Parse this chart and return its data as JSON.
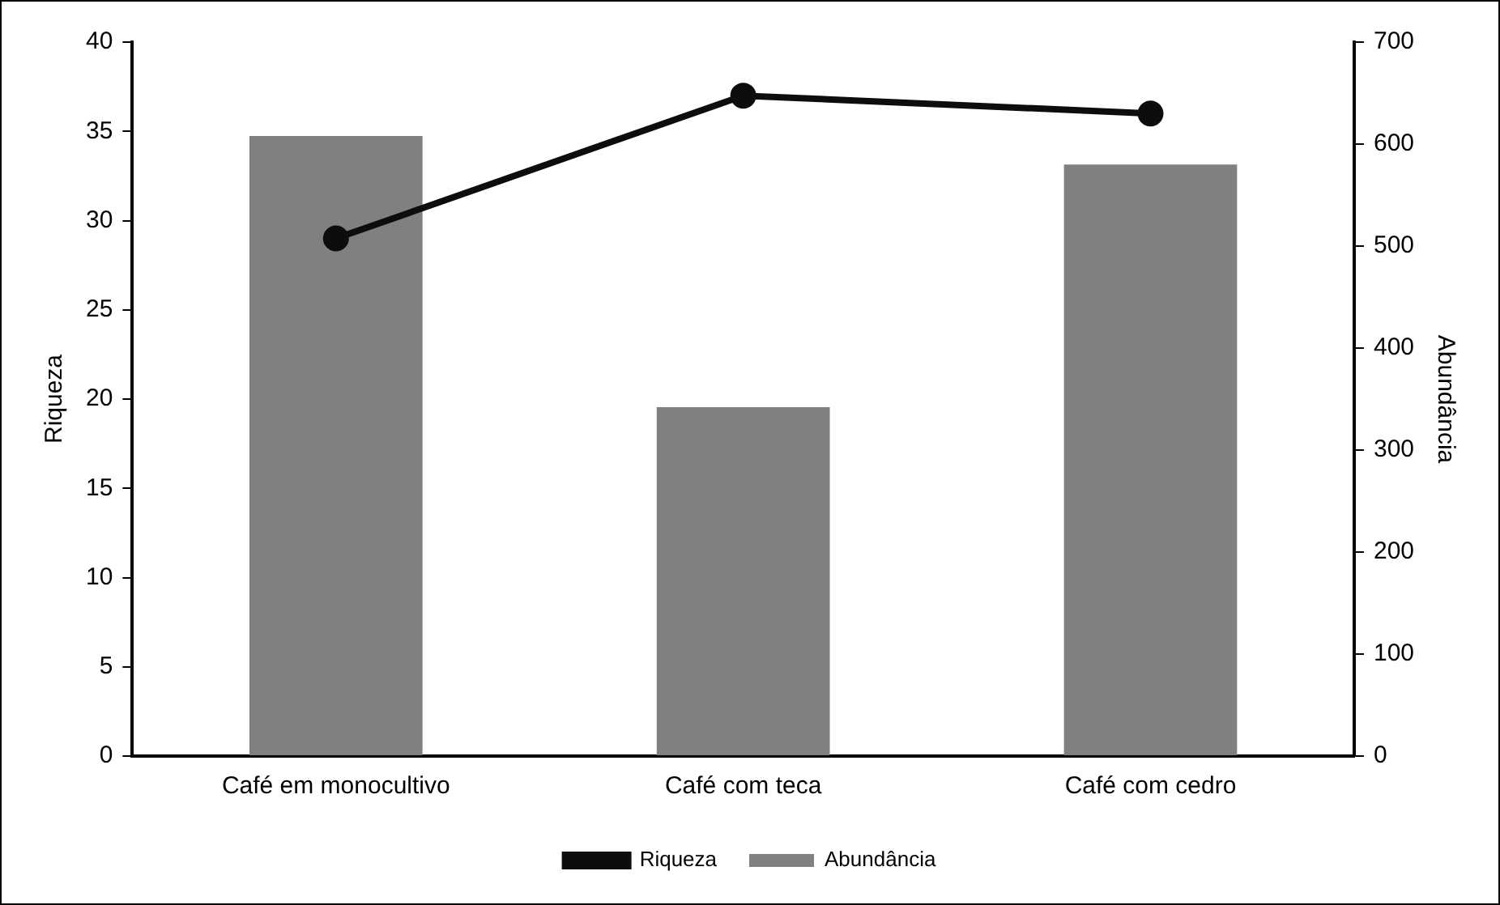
{
  "chart_data": {
    "type": "bar",
    "ylabel": "Riqueza",
    "y2label": "Abundância",
    "categories": [
      "Café em monocultivo",
      "Café com teca",
      "Café com cedro"
    ],
    "series": [
      {
        "name": "Riqueza",
        "type": "line",
        "color": "#0d0d0d",
        "values": [
          29,
          37,
          36
        ],
        "marker": "circle"
      },
      {
        "name": "Abundância",
        "axis": "y2",
        "color": "#808080",
        "values": [
          608,
          342,
          580
        ]
      }
    ],
    "ylim": [
      0,
      40
    ],
    "yticks": [
      0,
      5,
      10,
      15,
      20,
      25,
      30,
      35,
      40
    ],
    "y2lim": [
      0,
      700
    ],
    "y2ticks": [
      0,
      100,
      200,
      300,
      400,
      500,
      600,
      700
    ],
    "grid": false,
    "legend": "bottom"
  }
}
